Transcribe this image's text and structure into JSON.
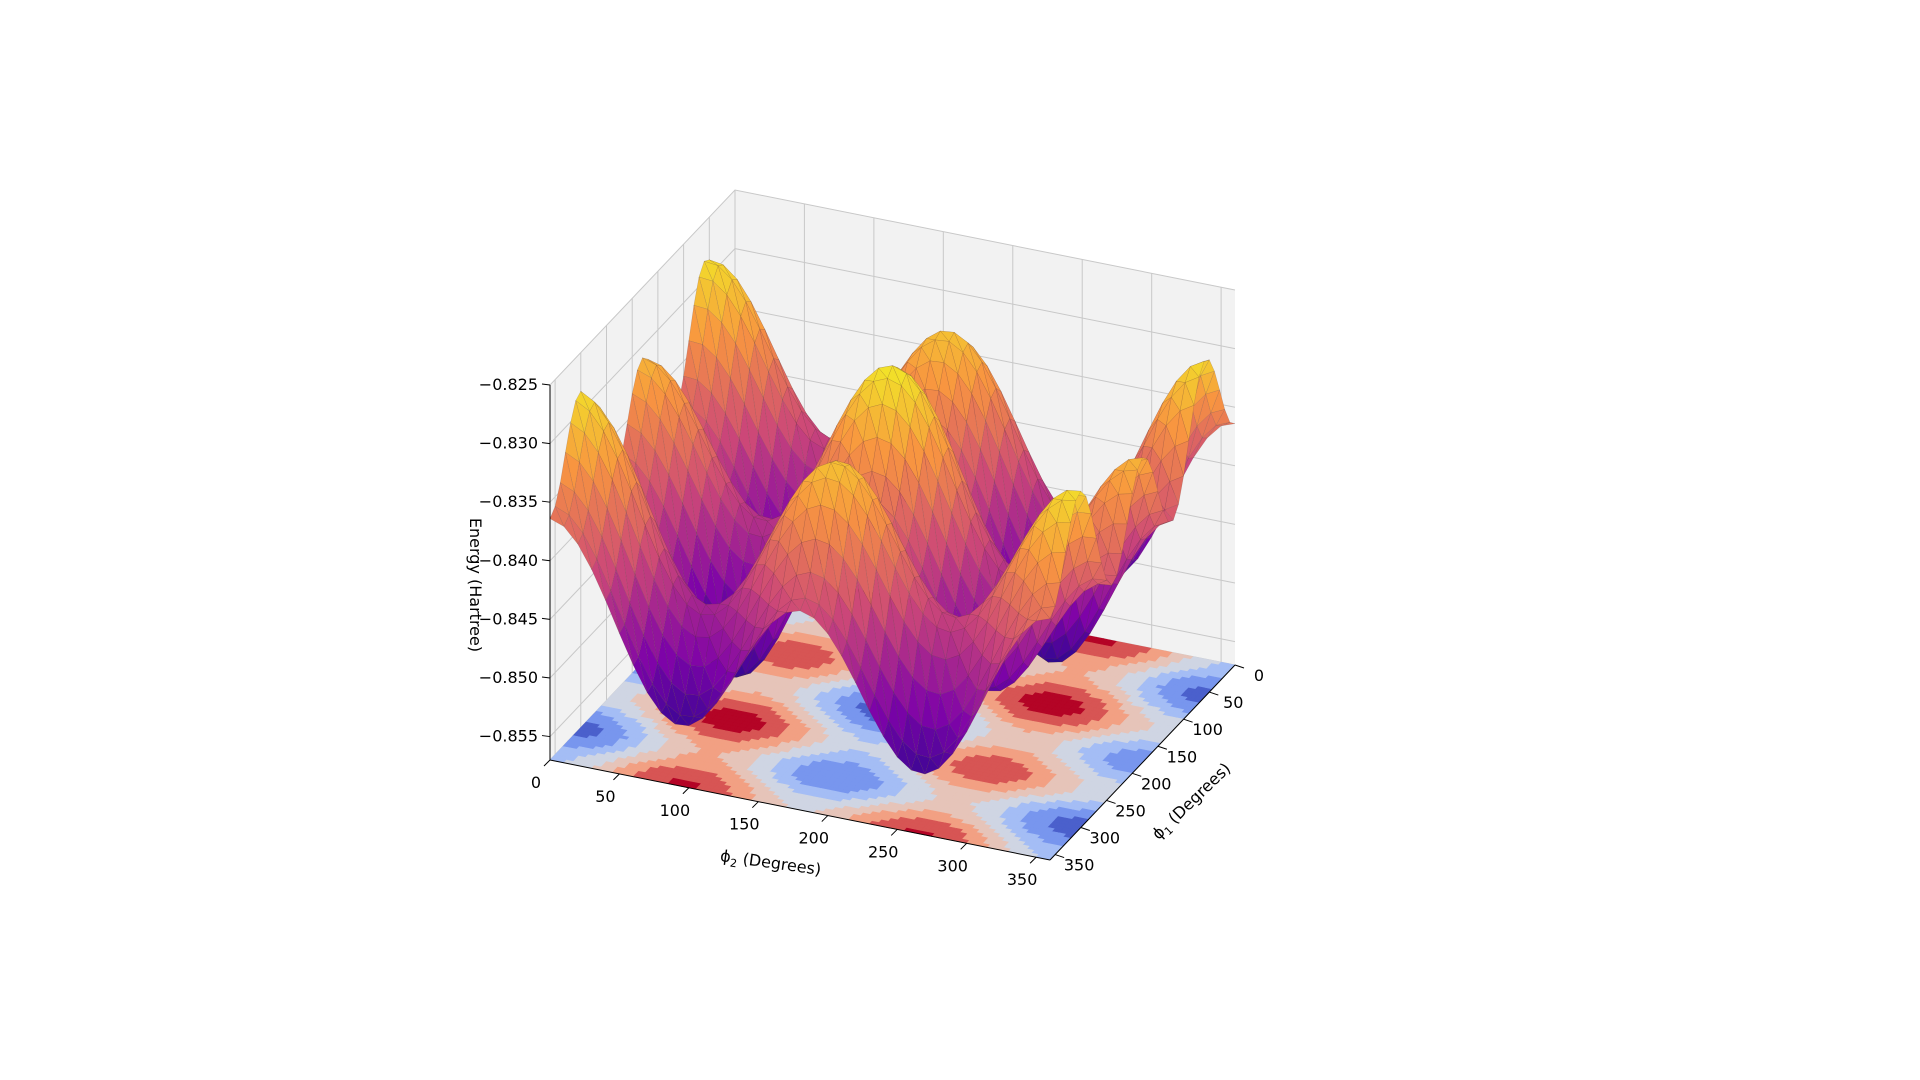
{
  "chart_data": {
    "type": "surface3d",
    "title": "",
    "xlabel": "ϕ₂ (Degrees)",
    "xlabel_parts": {
      "symbol": "ϕ",
      "subscript": "2",
      "rest": " (Degrees)"
    },
    "ylabel": "ϕ₁ (Degrees)",
    "ylabel_parts": {
      "symbol": "ϕ",
      "subscript": "1",
      "rest": " (Degrees)"
    },
    "zlabel": "Energy (Hartree)",
    "xlim": [
      0,
      360
    ],
    "ylim": [
      0,
      360
    ],
    "zlim": [
      -0.857,
      -0.825
    ],
    "x_ticks": [
      "0",
      "50",
      "100",
      "150",
      "200",
      "250",
      "300",
      "350"
    ],
    "y_ticks": [
      "0",
      "50",
      "100",
      "150",
      "200",
      "250",
      "300",
      "350"
    ],
    "z_ticks": [
      "−0.825",
      "−0.830",
      "−0.835",
      "−0.840",
      "−0.845",
      "−0.850",
      "−0.855"
    ],
    "x_tick_values": [
      0,
      50,
      100,
      150,
      200,
      250,
      300,
      350
    ],
    "y_tick_values": [
      0,
      50,
      100,
      150,
      200,
      250,
      300,
      350
    ],
    "z_tick_values": [
      -0.825,
      -0.83,
      -0.835,
      -0.84,
      -0.845,
      -0.85,
      -0.855
    ],
    "surface": {
      "description_function": "E(phi1, phi2) ≈ -0.8405 + 0.0068·cos(2·phi2) - 0.0045·cos(3·phi1) + 0.0018·cos(phi2 - phi1)",
      "z_min": -0.855,
      "z_max": -0.826,
      "colormap": "plasma"
    },
    "contour_floor": {
      "colormap": "coolwarm",
      "levels": 8
    },
    "grid": true,
    "colors": {
      "pane_left": "#f2f2f2",
      "pane_back": "#f2f2f2",
      "pane_floor": "#e6e6e6",
      "gridline": "#c8c8c8"
    }
  }
}
